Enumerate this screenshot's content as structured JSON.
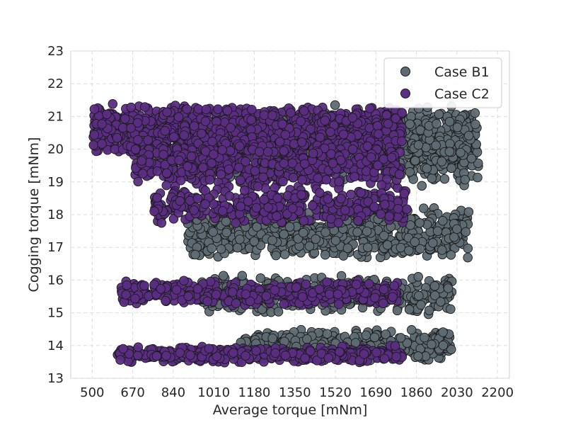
{
  "chart_data": {
    "type": "scatter",
    "title": "",
    "xlabel": "Average torque [mNm]",
    "ylabel": "Cogging torque [mNm]",
    "xlim": [
      410,
      2250
    ],
    "ylim": [
      13,
      23
    ],
    "xticks": [
      500,
      670,
      840,
      1010,
      1180,
      1350,
      1520,
      1690,
      1860,
      2030,
      2200
    ],
    "yticks": [
      13,
      14,
      15,
      16,
      17,
      18,
      19,
      20,
      21,
      22,
      23
    ],
    "grid": true,
    "legend_position": "top-right",
    "series": [
      {
        "name": "Case B1",
        "color": "#5f6b73",
        "clusters": [
          {
            "x_range": [
              980,
              2100
            ],
            "y_range": [
              19.0,
              21.4
            ],
            "count": 650
          },
          {
            "x_range": [
              1830,
              2120
            ],
            "y_range": [
              18.8,
              21.3
            ],
            "count": 180
          },
          {
            "x_range": [
              900,
              2080
            ],
            "y_range": [
              16.6,
              18.3
            ],
            "count": 700
          },
          {
            "x_range": [
              960,
              2010
            ],
            "y_range": [
              14.9,
              16.2
            ],
            "count": 380
          },
          {
            "x_range": [
              1120,
              2010
            ],
            "y_range": [
              13.5,
              14.5
            ],
            "count": 420
          }
        ]
      },
      {
        "name": "Case C2",
        "color": "#5b2d83",
        "clusters": [
          {
            "x_range": [
              505,
              1800
            ],
            "y_range": [
              19.7,
              21.4
            ],
            "count": 1100
          },
          {
            "x_range": [
              680,
              1800
            ],
            "y_range": [
              18.7,
              20.4
            ],
            "count": 600
          },
          {
            "x_range": [
              760,
              1820
            ],
            "y_range": [
              17.7,
              18.8
            ],
            "count": 350
          },
          {
            "x_range": [
              620,
              1780
            ],
            "y_range": [
              15.2,
              16.0
            ],
            "count": 380
          },
          {
            "x_range": [
              600,
              1800
            ],
            "y_range": [
              13.45,
              14.0
            ],
            "count": 420
          }
        ]
      }
    ]
  },
  "legend": {
    "items": [
      "Case B1",
      "Case C2"
    ]
  }
}
